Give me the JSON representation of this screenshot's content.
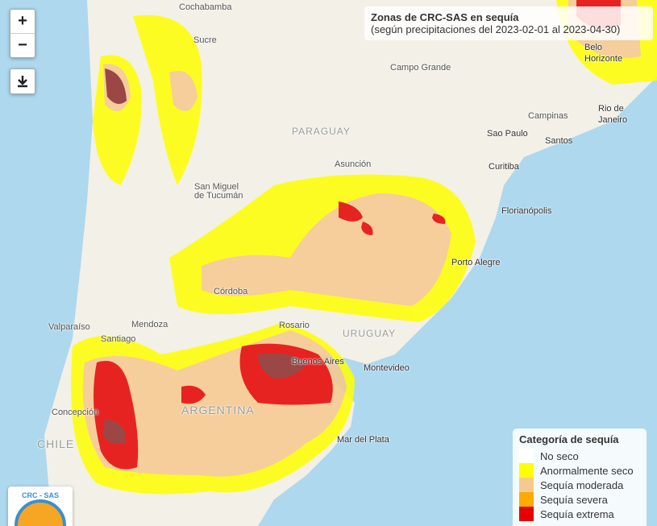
{
  "controls": {
    "zoom_in": "+",
    "zoom_out": "−"
  },
  "title": {
    "heading": "Zonas de CRC-SAS en sequía",
    "subtitle": "(según precipitaciones del 2023-02-01 al 2023-04-30)"
  },
  "legend": {
    "title": "Categoría de sequía",
    "items": [
      {
        "label": "No seco",
        "color": "#ffffff"
      },
      {
        "label": "Anormalmente seco",
        "color": "#ffff00"
      },
      {
        "label": "Sequía moderada",
        "color": "#f6c98e"
      },
      {
        "label": "Sequía severa",
        "color": "#ffaa00"
      },
      {
        "label": "Sequía extrema",
        "color": "#e60000"
      }
    ]
  },
  "map_labels": [
    "Cochabamba",
    "Sucre",
    "Campo Grande",
    "Belo Horizonte",
    "Rio de Janeiro",
    "PARAGUAY",
    "Campinas",
    "Sao Paulo",
    "Santos",
    "Asunción",
    "Curitiba",
    "San Miguel de Tucumán",
    "Florianópolis",
    "Porto Alegre",
    "Córdoba",
    "Rosario",
    "URUGUAY",
    "Valparaíso",
    "Mendoza",
    "Santiago",
    "Buenos Aires",
    "Montevideo",
    "Concepción",
    "ARGENTINA",
    "CHILE",
    "Mar del Plata"
  ],
  "logo": "CRC - SAS"
}
